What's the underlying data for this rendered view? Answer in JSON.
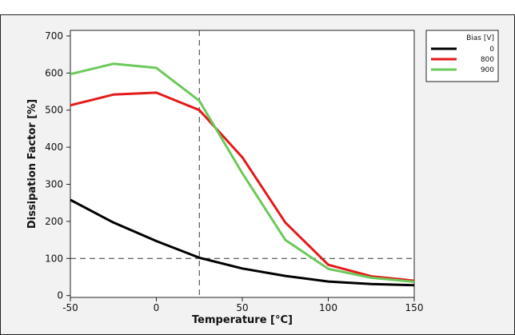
{
  "chart_data": {
    "type": "line",
    "title": "",
    "xlabel": "Temperature [°C]",
    "ylabel": "Dissipation Factor [%]",
    "xlim": [
      -50,
      150
    ],
    "ylim": [
      -5,
      715
    ],
    "xticks": [
      -50,
      0,
      50,
      100,
      150
    ],
    "yticks": [
      0,
      100,
      200,
      300,
      400,
      500,
      600,
      700
    ],
    "x": [
      -50,
      -25,
      0,
      25,
      50,
      75,
      100,
      125,
      150
    ],
    "series": [
      {
        "name": "0",
        "color": "#000000",
        "values": [
          258,
          197,
          147,
          102,
          73,
          53,
          38,
          31,
          28
        ]
      },
      {
        "name": "800",
        "color": "#e41a1a",
        "values": [
          513,
          542,
          547,
          500,
          373,
          197,
          83,
          52,
          40
        ]
      },
      {
        "name": "900",
        "color": "#6cc95a",
        "values": [
          597,
          625,
          614,
          525,
          330,
          150,
          72,
          48,
          37
        ]
      }
    ],
    "reference_lines": {
      "vertical_x": 25,
      "horizontal_y": 100
    },
    "legend": {
      "title": "Bias [V]",
      "placement": "top-right"
    },
    "grid": false
  }
}
